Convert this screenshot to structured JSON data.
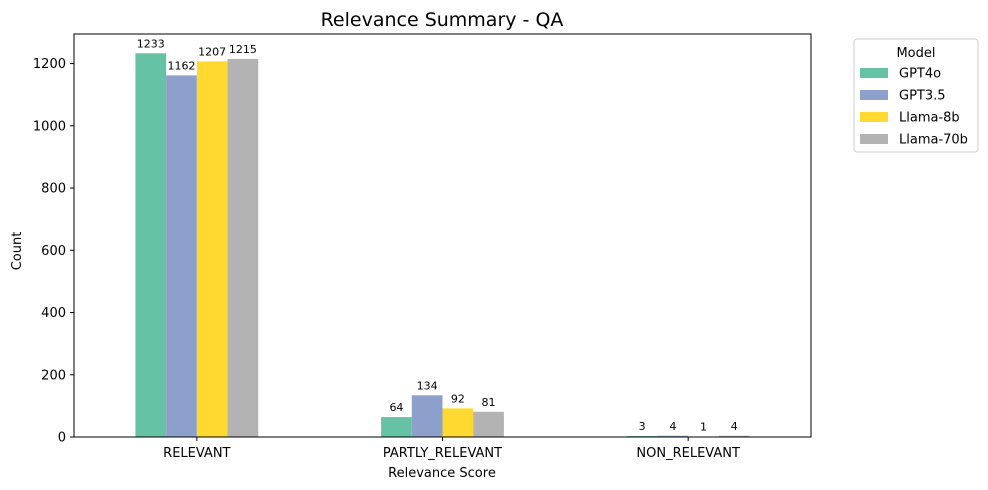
{
  "chart_data": {
    "type": "bar",
    "title": "Relevance Summary - QA",
    "xlabel": "Relevance Score",
    "ylabel": "Count",
    "categories": [
      "RELEVANT",
      "PARTLY_RELEVANT",
      "NON_RELEVANT"
    ],
    "ylim": [
      0,
      1295
    ],
    "yticks": [
      0,
      200,
      400,
      600,
      800,
      1000,
      1200
    ],
    "grid": false,
    "legend": {
      "title": "Model",
      "placement": "outside-top-right"
    },
    "series": [
      {
        "name": "GPT4o",
        "color": "#66c2a5",
        "values": [
          1233,
          64,
          3
        ]
      },
      {
        "name": "GPT3.5",
        "color": "#8da0cb",
        "values": [
          1162,
          134,
          4
        ]
      },
      {
        "name": "Llama-8b",
        "color": "#ffd92f",
        "values": [
          1207,
          92,
          1
        ]
      },
      {
        "name": "Llama-70b",
        "color": "#b3b3b3",
        "values": [
          1215,
          81,
          4
        ]
      }
    ]
  }
}
